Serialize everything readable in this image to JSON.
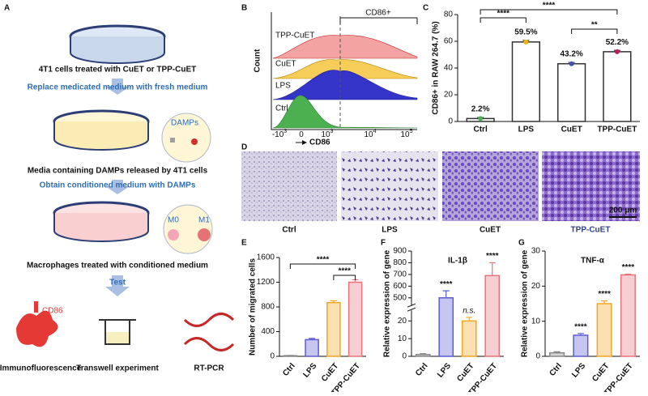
{
  "panel_a": {
    "label": "A",
    "step1": "4T1 cells treated with CuET or TPP-CuET",
    "arrow1": "Replace medicated medium with fresh medium",
    "damps": "DAMPs",
    "step2": "Media containing DAMPs released by 4T1 cells",
    "arrow2": "Obtain conditioned medium with DAMPs",
    "m0": "M0",
    "m1": "M1",
    "step3": "Macrophages treated with conditioned medium",
    "arrow3": "Test",
    "cd86": "CD86",
    "tests": [
      "Immunofluorescence",
      "Transwell experiment",
      "RT-PCR"
    ]
  },
  "panel_b": {
    "label": "B",
    "gate": "CD86+",
    "samples": [
      "TPP-CuET",
      "CuET",
      "LPS",
      "Ctrl"
    ],
    "ylabel": "Count",
    "xlabel": "CD86",
    "xticks": [
      {
        "base": "-10",
        "exp": "3"
      },
      {
        "base": "0",
        "exp": ""
      },
      {
        "base": "10",
        "exp": "3"
      },
      {
        "base": "10",
        "exp": "4"
      },
      {
        "base": "10",
        "exp": "5"
      }
    ]
  },
  "panel_d": {
    "label": "D",
    "images": [
      "Ctrl",
      "LPS",
      "CuET",
      "TPP-CuET"
    ],
    "scale_bar": "200 μm"
  },
  "chart_data": [
    {
      "type": "bar",
      "label": "C",
      "ylabel": "CD86+ in RAW 264.7 (%)",
      "categories": [
        "Ctrl",
        "LPS",
        "CuET",
        "TPP-CuET"
      ],
      "values": [
        2.2,
        59.5,
        43.2,
        52.2
      ],
      "value_labels": [
        "2.2%",
        "59.5%",
        "43.2%",
        "52.2%"
      ],
      "errors": [
        0.8,
        1.2,
        1,
        1
      ],
      "colors": [
        "#333333",
        "#333333",
        "#333333",
        "#333333"
      ],
      "point_colors": [
        "#4caf50",
        "#f0b400",
        "#3f51b5",
        "#c2185b"
      ],
      "ylim": [
        0,
        80
      ],
      "yticks": [
        0,
        20,
        40,
        60,
        80
      ],
      "brackets": [
        "****",
        "****",
        "**"
      ]
    },
    {
      "type": "bar",
      "label": "E",
      "ylabel": "Number of migrated cells",
      "categories": [
        "Ctrl",
        "LPS",
        "CuET",
        "TPP-CuET"
      ],
      "values": [
        10,
        270,
        870,
        1200
      ],
      "errors": [
        5,
        20,
        30,
        40
      ],
      "colors": [
        "#888888",
        "#5b5bd6",
        "#f5a623",
        "#e8737a"
      ],
      "ylim": [
        0,
        1600
      ],
      "yticks": [
        0,
        400,
        800,
        1200,
        1600
      ],
      "brackets": [
        "****",
        "****"
      ]
    },
    {
      "type": "bar",
      "label": "F",
      "title": "IL-1β",
      "ylabel": "Relative expression of gene",
      "categories": [
        "Ctrl",
        "LPS",
        "CuET",
        "TPP-CuET"
      ],
      "values": [
        1,
        500,
        20,
        690
      ],
      "errors": [
        0.5,
        60,
        2,
        110
      ],
      "colors": [
        "#888888",
        "#5b5bd6",
        "#f5a623",
        "#e8737a"
      ],
      "ylim": [
        0,
        900
      ],
      "axis_break": [
        25,
        450
      ],
      "yticks": [
        0,
        10,
        20,
        500,
        600,
        700,
        800,
        900
      ],
      "bar_annotations": [
        null,
        "****",
        "n.s.",
        "****"
      ]
    },
    {
      "type": "bar",
      "label": "G",
      "title": "TNF-α",
      "ylabel": "Relative expression of gene",
      "categories": [
        "Ctrl",
        "LPS",
        "CuET",
        "TPP-CuET"
      ],
      "values": [
        1,
        6,
        15,
        23.2
      ],
      "errors": [
        0.3,
        0.5,
        0.8,
        0.2
      ],
      "colors": [
        "#888888",
        "#5b5bd6",
        "#f5a623",
        "#e8737a"
      ],
      "ylim": [
        0,
        30
      ],
      "yticks": [
        0,
        10,
        20,
        30
      ],
      "bar_annotations": [
        null,
        "****",
        "****",
        "****"
      ]
    }
  ]
}
